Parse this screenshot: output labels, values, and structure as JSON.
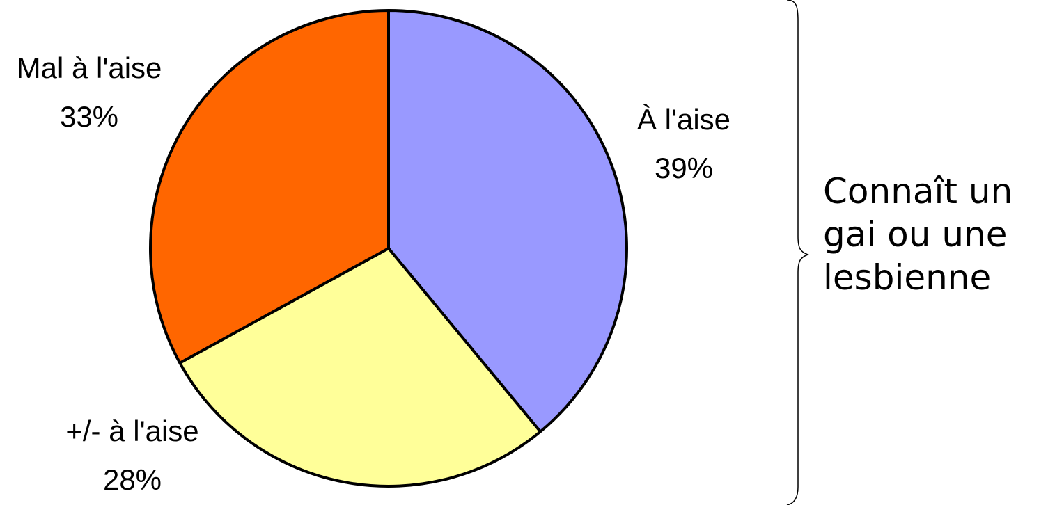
{
  "chart_data": {
    "type": "pie",
    "slices": [
      {
        "label": "À l'aise",
        "value_label": "39%",
        "value": 39,
        "color": "#9999ff"
      },
      {
        "label": "+/- à l'aise",
        "value_label": "28%",
        "value": 28,
        "color": "#ffff99"
      },
      {
        "label": "Mal à l'aise",
        "value_label": "33%",
        "value": 33,
        "color": "#ff6600"
      }
    ],
    "start": "12 o'clock",
    "direction": "clockwise",
    "outline_color": "#000000"
  },
  "caption": {
    "lines": [
      "Connaît un",
      "gai ou une",
      "lesbienne"
    ]
  }
}
